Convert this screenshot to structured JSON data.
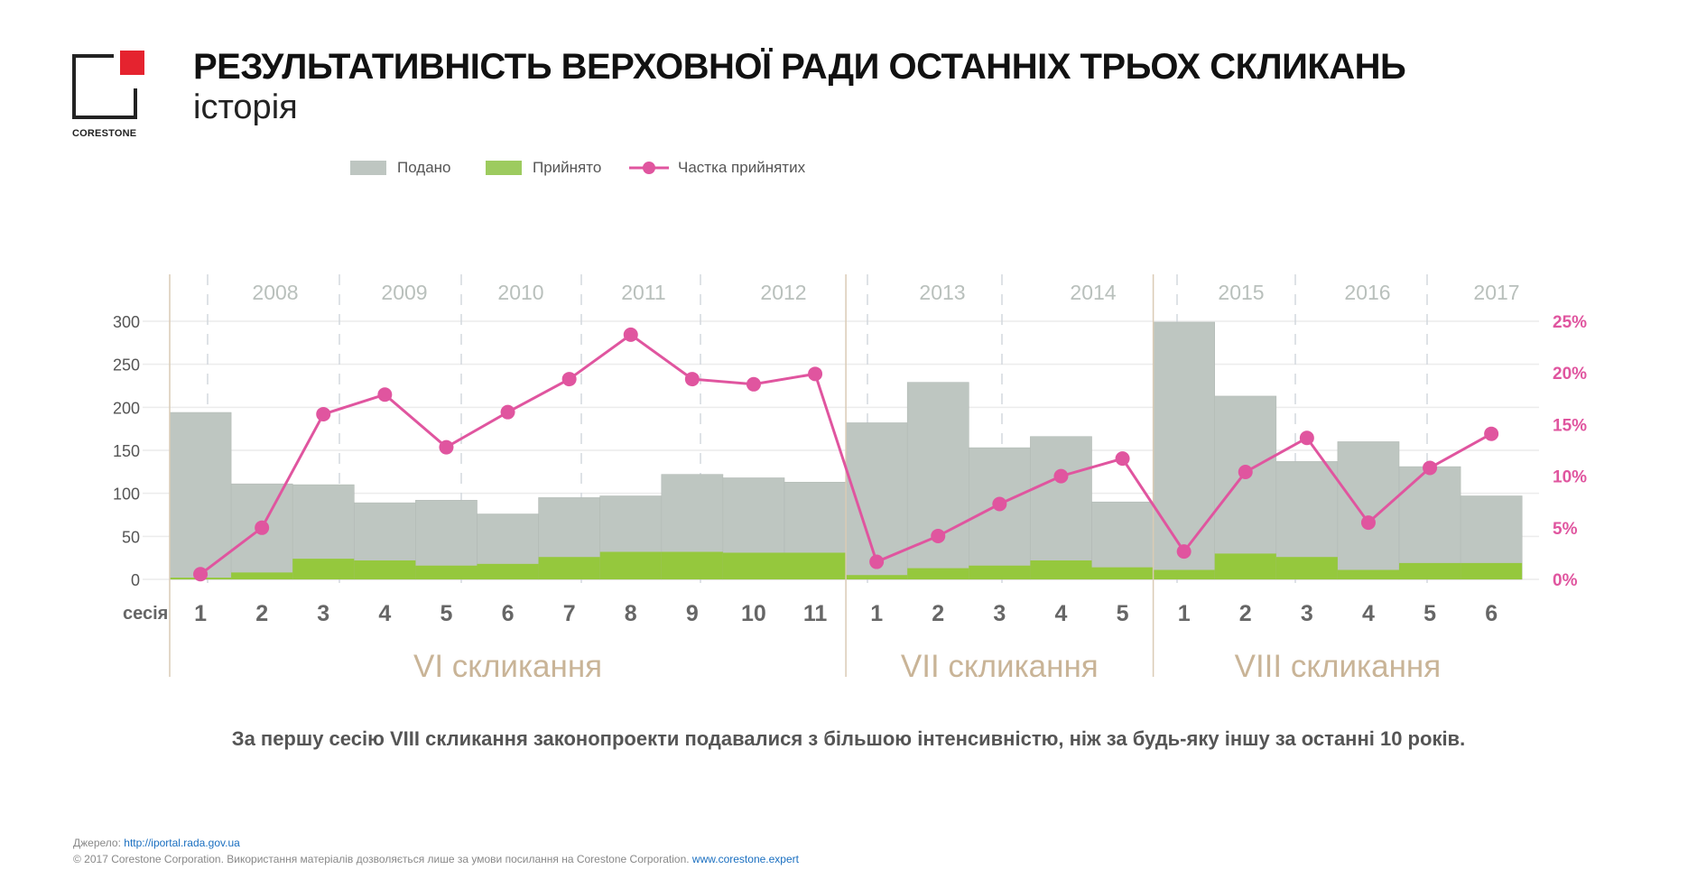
{
  "logo": {
    "name": "CORESTONE"
  },
  "header": {
    "title": "РЕЗУЛЬТАТИВНІСТЬ ВЕРХОВНОЇ РАДИ ОСТАННІХ ТРЬОХ СКЛИКАНЬ",
    "subtitle": "історія"
  },
  "legend": {
    "submitted": "Подано",
    "adopted": "Прийнято",
    "share": "Частка прийнятих"
  },
  "colors": {
    "submitted": "#bec6c1",
    "adopted": "#95c83d",
    "share": "#e0559f",
    "convocation": "#c9b497",
    "year": "#b9c0bc"
  },
  "chart_data": {
    "type": "bar+line",
    "title": "РЕЗУЛЬТАТИВНІСТЬ ВЕРХОВНОЇ РАДИ ОСТАННІХ ТРЬОХ СКЛИКАНЬ",
    "xlabel": "сесія",
    "ylim": [
      0,
      300
    ],
    "y_ticks": [
      "0",
      "50",
      "100",
      "150",
      "200",
      "250",
      "300"
    ],
    "y2lim": [
      0,
      25
    ],
    "y2_ticks": [
      "0%",
      "5%",
      "10%",
      "15%",
      "20%",
      "25%"
    ],
    "grid": true,
    "legend_position": "top-left",
    "years": [
      "2008",
      "2009",
      "2010",
      "2011",
      "2012",
      "2013",
      "2014",
      "2015",
      "2016",
      "2017"
    ],
    "convocations": [
      {
        "label": "VI скликання",
        "sessions": [
          "1",
          "2",
          "3",
          "4",
          "5",
          "6",
          "7",
          "8",
          "9",
          "10",
          "11"
        ]
      },
      {
        "label": "VII скликання",
        "sessions": [
          "1",
          "2",
          "3",
          "4",
          "5"
        ]
      },
      {
        "label": "VIII скликання",
        "sessions": [
          "1",
          "2",
          "3",
          "4",
          "5",
          "6"
        ]
      }
    ],
    "series": [
      {
        "name": "Подано",
        "type": "bar",
        "values": [
          194,
          111,
          110,
          89,
          92,
          76,
          95,
          97,
          122,
          118,
          113,
          182,
          229,
          153,
          166,
          90,
          299,
          213,
          137,
          160,
          131,
          97
        ]
      },
      {
        "name": "Прийнято",
        "type": "bar",
        "values": [
          2,
          8,
          24,
          22,
          16,
          18,
          26,
          32,
          32,
          31,
          31,
          5,
          13,
          16,
          22,
          14,
          11,
          30,
          26,
          11,
          19,
          19
        ]
      },
      {
        "name": "Частка прийнятих",
        "type": "line",
        "axis": "right",
        "unit": "%",
        "values": [
          0.5,
          5.0,
          16.0,
          17.9,
          12.8,
          16.2,
          19.4,
          23.7,
          19.4,
          18.9,
          19.9,
          1.7,
          4.2,
          7.3,
          10.0,
          11.7,
          2.7,
          10.4,
          13.7,
          5.5,
          10.8,
          14.1
        ]
      }
    ]
  },
  "note": "За першу сесію VIII скликання законопроекти подавалися з більшою інтенсивністю, ніж за будь-яку іншу за останні 10 років.",
  "footer": {
    "source_label": "Джерело: ",
    "source_link": "http://iportal.rada.gov.ua",
    "copyright": "© 2017 Corestone Corporation. Використання матеріалів дозволяється лише за умови посилання на Corestone Corporation. ",
    "site_link": "www.corestone.expert"
  }
}
